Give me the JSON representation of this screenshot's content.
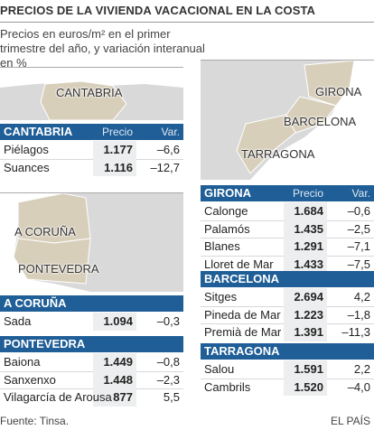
{
  "header": {
    "title": "PRECIOS DE LA VIVIENDA VACACIONAL EN LA COSTA",
    "subtitle": "Precios en euros/m² en el primer trimestre del año, y variación interanual en %"
  },
  "maps": [
    {
      "labels": [
        "CANTABRIA"
      ]
    },
    {
      "labels": [
        "A CORUÑA",
        "PONTEVEDRA"
      ]
    },
    {
      "labels": [
        "GIRONA",
        "BARCELONA",
        "TARRAGONA"
      ]
    }
  ],
  "tables": [
    {
      "region": "CANTABRIA",
      "columns": [
        "Precio",
        "Var."
      ],
      "rows": [
        [
          "Piélagos",
          "1.177",
          "–6,6"
        ],
        [
          "Suances",
          "1.116",
          "–12,7"
        ]
      ]
    },
    {
      "region": "A CORUÑA",
      "rows": [
        [
          "Sada",
          "1.094",
          "–0,3"
        ]
      ]
    },
    {
      "region": "PONTEVEDRA",
      "rows": [
        [
          "Baiona",
          "1.449",
          "–0,8"
        ],
        [
          "Sanxenxo",
          "1.448",
          "–2,3"
        ],
        [
          "Vilagarcía de Arousa",
          "877",
          "5,5"
        ]
      ]
    },
    {
      "region": "GIRONA",
      "columns": [
        "Precio",
        "Var."
      ],
      "rows": [
        [
          "Calonge",
          "1.684",
          "–0,6"
        ],
        [
          "Palamós",
          "1.435",
          "–2,5"
        ],
        [
          "Blanes",
          "1.291",
          "–7,1"
        ],
        [
          "Lloret de Mar",
          "1.433",
          "–7,5"
        ]
      ]
    },
    {
      "region": "BARCELONA",
      "rows": [
        [
          "Sitges",
          "2.694",
          "4,2"
        ],
        [
          "Pineda de Mar",
          "1.223",
          "–1,8"
        ],
        [
          "Premià de Mar",
          "1.391",
          "–11,3"
        ]
      ]
    },
    {
      "region": "TARRAGONA",
      "rows": [
        [
          "Salou",
          "1.591",
          "2,2"
        ],
        [
          "Cambrils",
          "1.520",
          "–4,0"
        ]
      ]
    }
  ],
  "footer": {
    "source": "Fuente: Tinsa.",
    "brand": "EL PAÍS"
  }
}
